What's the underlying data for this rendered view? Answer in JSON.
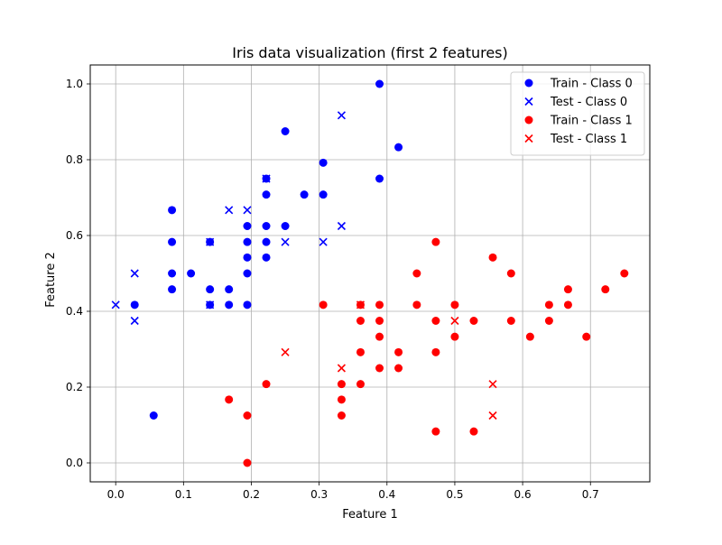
{
  "chart_data": {
    "type": "scatter",
    "title": "Iris data visualization (first 2 features)",
    "xlabel": "Feature 1",
    "ylabel": "Feature 2",
    "xlim": [
      -0.0375,
      0.7875
    ],
    "ylim": [
      -0.05,
      1.05
    ],
    "xticks": [
      0.0,
      0.1,
      0.2,
      0.3,
      0.4,
      0.5,
      0.6,
      0.7
    ],
    "yticks": [
      0.0,
      0.2,
      0.4,
      0.6,
      0.8,
      1.0
    ],
    "xtick_labels": [
      "0.0",
      "0.1",
      "0.2",
      "0.3",
      "0.4",
      "0.5",
      "0.6",
      "0.7"
    ],
    "ytick_labels": [
      "0.0",
      "0.2",
      "0.4",
      "0.6",
      "0.8",
      "1.0"
    ],
    "grid": true,
    "legend_position": "top-right",
    "series": [
      {
        "name": "Train - Class 0",
        "marker": "circle",
        "color": "#0000ff",
        "points": [
          [
            0.028,
            0.417
          ],
          [
            0.056,
            0.125
          ],
          [
            0.083,
            0.458
          ],
          [
            0.083,
            0.5
          ],
          [
            0.083,
            0.583
          ],
          [
            0.083,
            0.667
          ],
          [
            0.111,
            0.5
          ],
          [
            0.139,
            0.417
          ],
          [
            0.139,
            0.458
          ],
          [
            0.139,
            0.583
          ],
          [
            0.167,
            0.417
          ],
          [
            0.167,
            0.458
          ],
          [
            0.194,
            0.417
          ],
          [
            0.194,
            0.5
          ],
          [
            0.194,
            0.542
          ],
          [
            0.194,
            0.583
          ],
          [
            0.194,
            0.625
          ],
          [
            0.222,
            0.542
          ],
          [
            0.222,
            0.583
          ],
          [
            0.222,
            0.625
          ],
          [
            0.222,
            0.708
          ],
          [
            0.222,
            0.75
          ],
          [
            0.25,
            0.625
          ],
          [
            0.25,
            0.875
          ],
          [
            0.278,
            0.708
          ],
          [
            0.306,
            0.708
          ],
          [
            0.306,
            0.792
          ],
          [
            0.389,
            0.75
          ],
          [
            0.389,
            1.0
          ],
          [
            0.417,
            0.833
          ]
        ]
      },
      {
        "name": "Test - Class 0",
        "marker": "x",
        "color": "#0000ff",
        "points": [
          [
            0.0,
            0.417
          ],
          [
            0.028,
            0.375
          ],
          [
            0.028,
            0.5
          ],
          [
            0.139,
            0.417
          ],
          [
            0.139,
            0.583
          ],
          [
            0.167,
            0.667
          ],
          [
            0.194,
            0.667
          ],
          [
            0.222,
            0.75
          ],
          [
            0.25,
            0.583
          ],
          [
            0.306,
            0.583
          ],
          [
            0.333,
            0.625
          ],
          [
            0.333,
            0.917
          ]
        ]
      },
      {
        "name": "Train - Class 1",
        "marker": "circle",
        "color": "#ff0000",
        "points": [
          [
            0.194,
            0.0
          ],
          [
            0.167,
            0.167
          ],
          [
            0.194,
            0.125
          ],
          [
            0.222,
            0.208
          ],
          [
            0.306,
            0.417
          ],
          [
            0.333,
            0.125
          ],
          [
            0.333,
            0.167
          ],
          [
            0.333,
            0.208
          ],
          [
            0.361,
            0.208
          ],
          [
            0.361,
            0.292
          ],
          [
            0.361,
            0.375
          ],
          [
            0.361,
            0.417
          ],
          [
            0.389,
            0.25
          ],
          [
            0.389,
            0.333
          ],
          [
            0.389,
            0.375
          ],
          [
            0.389,
            0.417
          ],
          [
            0.417,
            0.25
          ],
          [
            0.417,
            0.292
          ],
          [
            0.444,
            0.417
          ],
          [
            0.444,
            0.5
          ],
          [
            0.472,
            0.083
          ],
          [
            0.472,
            0.292
          ],
          [
            0.472,
            0.375
          ],
          [
            0.472,
            0.583
          ],
          [
            0.5,
            0.333
          ],
          [
            0.5,
            0.417
          ],
          [
            0.528,
            0.083
          ],
          [
            0.528,
            0.375
          ],
          [
            0.556,
            0.542
          ],
          [
            0.583,
            0.375
          ],
          [
            0.583,
            0.5
          ],
          [
            0.611,
            0.333
          ],
          [
            0.639,
            0.375
          ],
          [
            0.639,
            0.417
          ],
          [
            0.667,
            0.417
          ],
          [
            0.667,
            0.458
          ],
          [
            0.694,
            0.333
          ],
          [
            0.722,
            0.458
          ],
          [
            0.75,
            0.5
          ]
        ]
      },
      {
        "name": "Test - Class 1",
        "marker": "x",
        "color": "#ff0000",
        "points": [
          [
            0.25,
            0.292
          ],
          [
            0.333,
            0.25
          ],
          [
            0.361,
            0.417
          ],
          [
            0.5,
            0.375
          ],
          [
            0.556,
            0.125
          ],
          [
            0.556,
            0.208
          ]
        ]
      }
    ]
  }
}
